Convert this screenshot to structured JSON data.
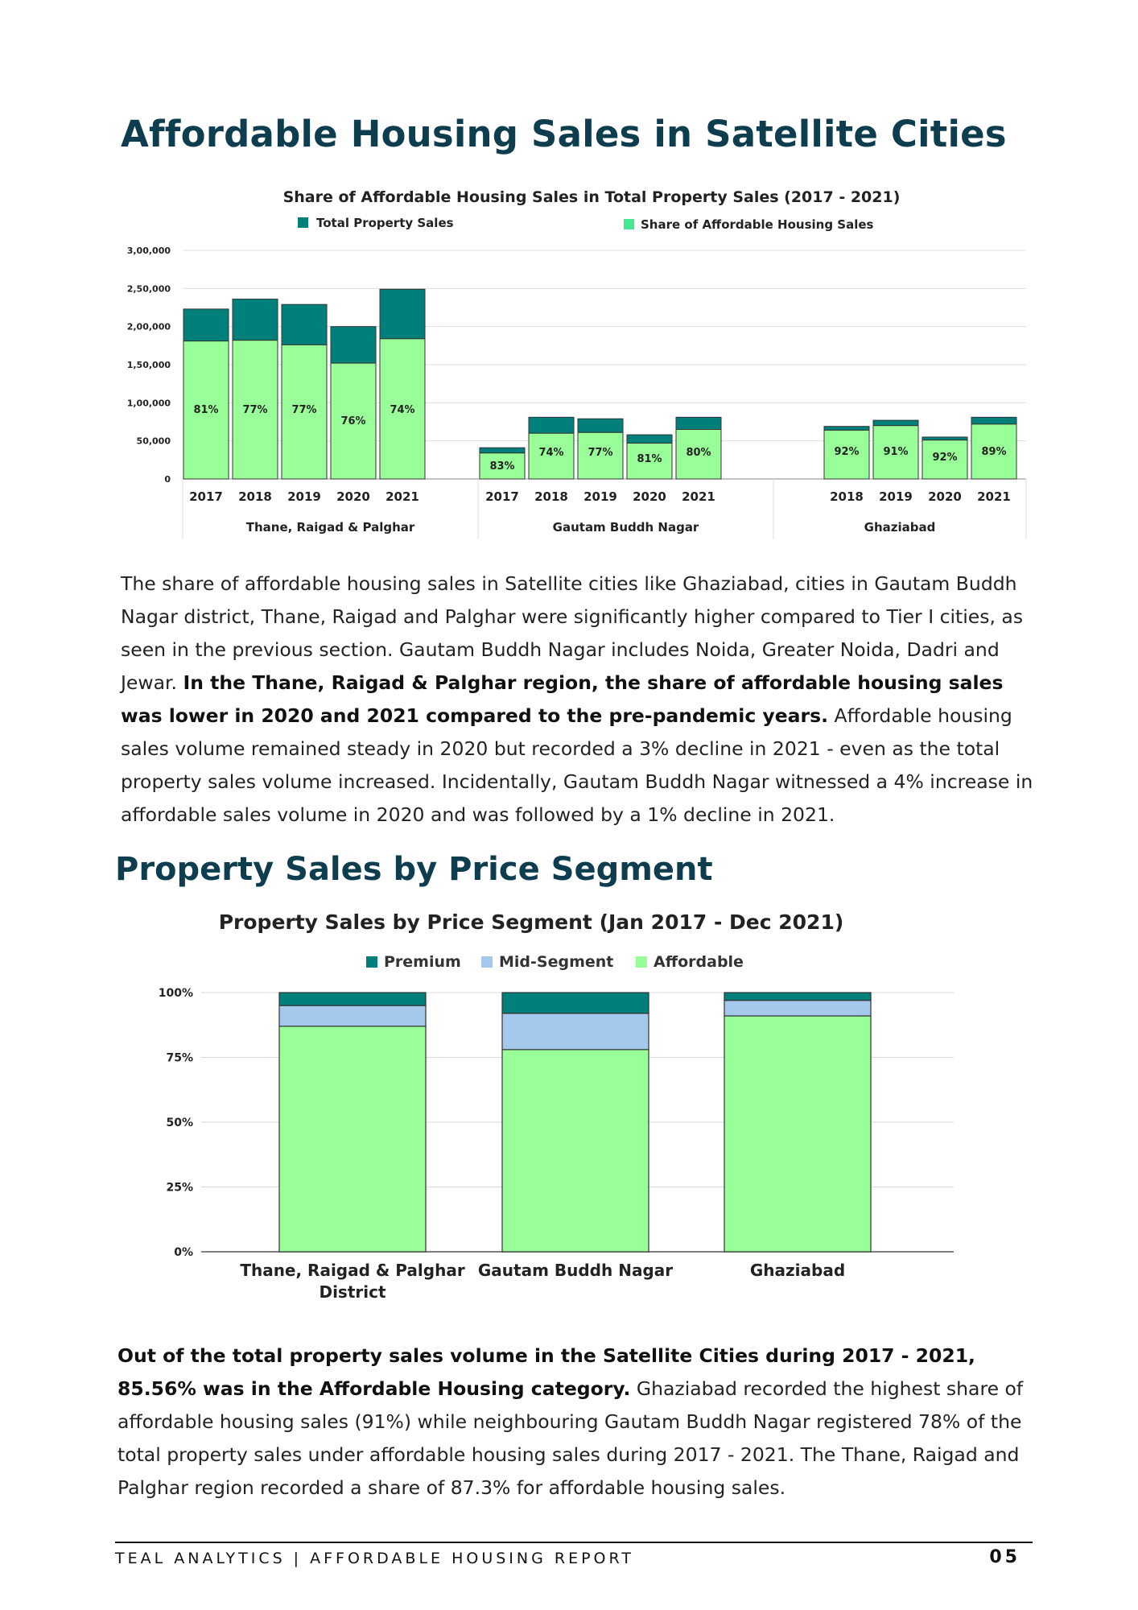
{
  "page": {
    "title": "Affordable Housing Sales in Satellite Cities",
    "section2_title": "Property Sales by Price Segment",
    "para1": {
      "text1": "The share of affordable housing sales in Satellite cities like Ghaziabad, cities in Gautam Buddh Nagar district, Thane, Raigad and Palghar were significantly higher compared to Tier I cities, as seen in the previous section. Gautam Buddh Nagar includes Noida, Greater Noida, Dadri and Jewar. ",
      "bold": "In the Thane, Raigad & Palghar region, the share of affordable housing sales was lower in 2020 and 2021 compared to the pre-pandemic years.",
      "text2": " Affordable housing sales volume remained steady in 2020 but recorded a 3% decline in 2021 - even as the total property sales volume increased. Incidentally, Gautam Buddh Nagar witnessed a 4% increase in affordable sales volume in 2020 and was followed by a 1% decline in 2021."
    },
    "para2": {
      "bold": "Out of the total property sales volume in the Satellite Cities during 2017 - 2021, 85.56% was in the Affordable Housing category.",
      "text": " Ghaziabad recorded the highest share of affordable housing sales (91%) while neighbouring Gautam Buddh Nagar registered 78% of the total property sales under affordable housing sales during 2017 - 2021. The Thane, Raigad and Palghar region recorded a share of 87.3% for affordable housing sales."
    },
    "footer": {
      "left": "TEAL ANALYTICS | AFFORDABLE HOUSING REPORT",
      "right": "05"
    }
  },
  "colors": {
    "heading": "#0d3d4f",
    "teal": "#007f7b",
    "green": "#99ff99",
    "light_blue": "#a4c9ec"
  },
  "chart_data": [
    {
      "type": "bar",
      "stacked": true,
      "title": "Share of Affordable Housing Sales in Total Property Sales (2017 - 2021)",
      "legend": [
        "Total Property Sales",
        "Share of Affordable Housing Sales"
      ],
      "legend_position": "top",
      "ylim": [
        0,
        300000
      ],
      "yticks": [
        "0",
        "50,000",
        "1,00,000",
        "1,50,000",
        "2,00,000",
        "2,50,000",
        "3,00,000"
      ],
      "grid": true,
      "groups": [
        {
          "name": "Thane, Raigad & Palghar",
          "years": [
            "2017",
            "2018",
            "2019",
            "2020",
            "2021"
          ],
          "total": [
            223000,
            236000,
            229000,
            200000,
            249000
          ],
          "affordable": [
            181000,
            182000,
            176000,
            152000,
            184000
          ],
          "share_labels": [
            "81%",
            "77%",
            "77%",
            "76%",
            "74%"
          ]
        },
        {
          "name": "Gautam Buddh Nagar",
          "years": [
            "2017",
            "2018",
            "2019",
            "2020",
            "2021"
          ],
          "total": [
            41000,
            81000,
            79000,
            58000,
            81000
          ],
          "affordable": [
            34000,
            60000,
            61000,
            47000,
            65000
          ],
          "share_labels": [
            "83%",
            "74%",
            "77%",
            "81%",
            "80%"
          ]
        },
        {
          "name": "Ghaziabad",
          "years": [
            "2018",
            "2019",
            "2020",
            "2021"
          ],
          "total": [
            69000,
            77000,
            55000,
            81000
          ],
          "affordable": [
            64000,
            70000,
            51000,
            72000
          ],
          "share_labels": [
            "92%",
            "91%",
            "92%",
            "89%"
          ]
        }
      ]
    },
    {
      "type": "bar",
      "stacked": true,
      "percent": true,
      "title": "Property Sales by Price Segment (Jan 2017 - Dec 2021)",
      "legend": [
        "Premium",
        "Mid-Segment",
        "Affordable"
      ],
      "legend_position": "top",
      "categories": [
        "Thane, Raigad & Palghar District",
        "Gautam Buddh Nagar",
        "Ghaziabad"
      ],
      "yticks": [
        "0%",
        "25%",
        "50%",
        "75%",
        "100%"
      ],
      "ylim": [
        0,
        100
      ],
      "grid": true,
      "series": [
        {
          "name": "Affordable",
          "values": [
            87,
            78,
            91
          ]
        },
        {
          "name": "Mid-Segment",
          "values": [
            8,
            14,
            6
          ]
        },
        {
          "name": "Premium",
          "values": [
            5,
            8,
            3
          ]
        }
      ]
    }
  ]
}
